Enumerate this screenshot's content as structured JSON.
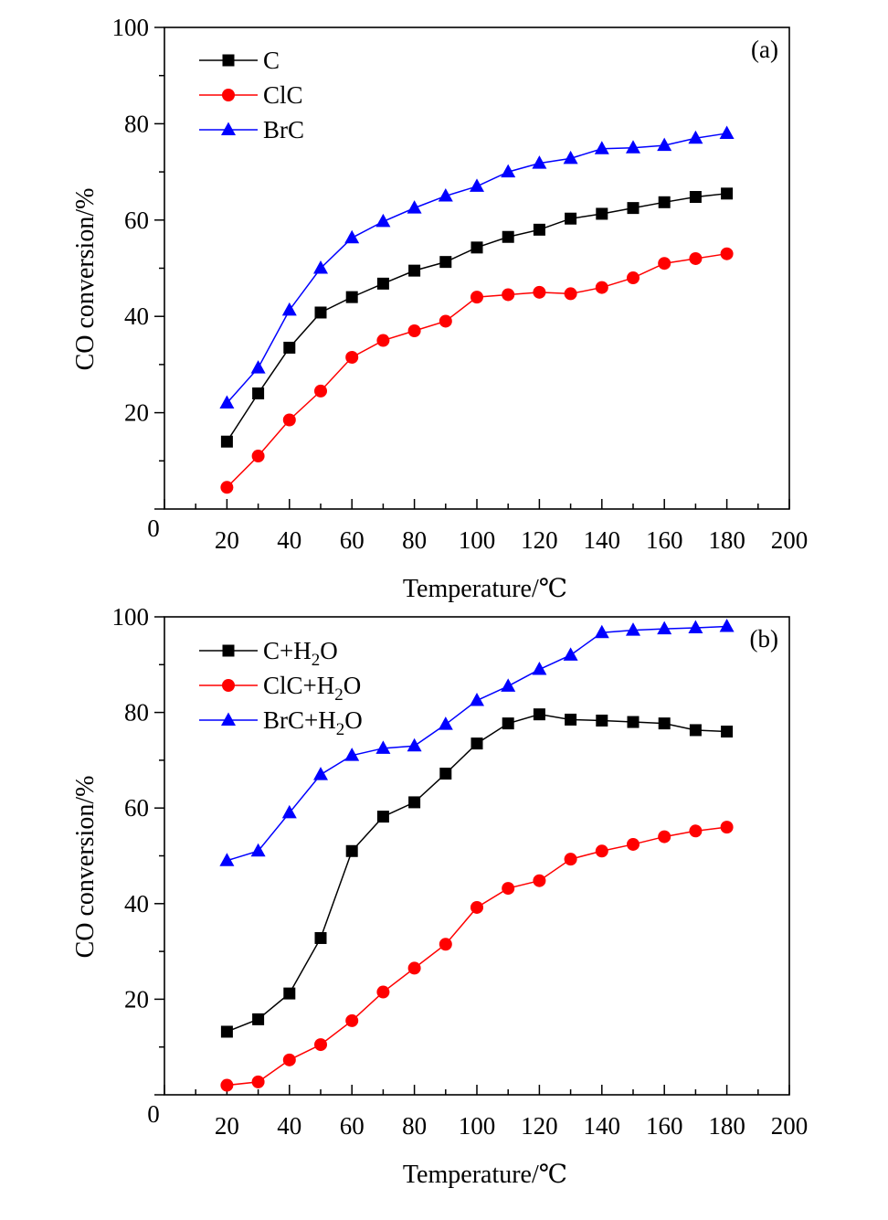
{
  "chart_data": [
    {
      "type": "line",
      "panel_label": "(a)",
      "xlabel": "Temperature/℃",
      "ylabel": "CO conversion/%",
      "xlim": [
        0,
        200
      ],
      "ylim": [
        0,
        100
      ],
      "x_ticks": [
        "20",
        "40",
        "60",
        "80",
        "100",
        "120",
        "140",
        "160",
        "180",
        "200"
      ],
      "y_ticks": [
        "20",
        "40",
        "60",
        "80",
        "100"
      ],
      "origin_label": "0",
      "legend_position": "top-left",
      "x": [
        20,
        30,
        40,
        50,
        60,
        70,
        80,
        90,
        100,
        110,
        120,
        130,
        140,
        150,
        160,
        170,
        180
      ],
      "series": [
        {
          "name": "C",
          "sub": "",
          "name_suffix": "",
          "color": "#000000",
          "marker": "square",
          "values": [
            14.0,
            24.0,
            33.5,
            40.8,
            44.0,
            46.8,
            49.5,
            51.3,
            54.3,
            56.5,
            58.0,
            60.3,
            61.3,
            62.5,
            63.7,
            64.8,
            65.5
          ]
        },
        {
          "name": "ClC",
          "sub": "",
          "name_suffix": "",
          "color": "#ff0000",
          "marker": "circle",
          "values": [
            4.5,
            11.0,
            18.5,
            24.5,
            31.5,
            35.0,
            37.0,
            39.0,
            44.0,
            44.5,
            45.0,
            44.7,
            46.0,
            48.0,
            51.0,
            52.0,
            53.0
          ]
        },
        {
          "name": "BrC",
          "sub": "",
          "name_suffix": "",
          "color": "#0000ff",
          "marker": "triangle",
          "values": [
            22.0,
            29.3,
            41.3,
            50.0,
            56.3,
            59.7,
            62.5,
            65.0,
            67.0,
            70.0,
            71.8,
            72.8,
            74.8,
            75.0,
            75.5,
            77.0,
            78.0
          ]
        }
      ]
    },
    {
      "type": "line",
      "panel_label": "(b)",
      "xlabel": "Temperature/℃",
      "ylabel": "CO conversion/%",
      "xlim": [
        0,
        200
      ],
      "ylim": [
        0,
        100
      ],
      "x_ticks": [
        "20",
        "40",
        "60",
        "80",
        "100",
        "120",
        "140",
        "160",
        "180",
        "200"
      ],
      "y_ticks": [
        "20",
        "40",
        "60",
        "80",
        "100"
      ],
      "origin_label": "0",
      "legend_position": "top-left",
      "x": [
        20,
        30,
        40,
        50,
        60,
        70,
        80,
        90,
        100,
        110,
        120,
        130,
        140,
        150,
        160,
        170,
        180
      ],
      "series": [
        {
          "name": "C+H",
          "sub": "2",
          "name_suffix": "O",
          "color": "#000000",
          "marker": "square",
          "values": [
            13.2,
            15.8,
            21.2,
            32.8,
            51.0,
            58.2,
            61.2,
            67.2,
            73.5,
            77.7,
            79.6,
            78.5,
            78.3,
            78.0,
            77.7,
            76.3,
            76.0
          ]
        },
        {
          "name": "ClC+H",
          "sub": "2",
          "name_suffix": "O",
          "color": "#ff0000",
          "marker": "circle",
          "values": [
            2.0,
            2.7,
            7.3,
            10.5,
            15.5,
            21.5,
            26.5,
            31.5,
            39.2,
            43.2,
            44.8,
            49.3,
            51.0,
            52.4,
            54.0,
            55.2,
            56.0
          ]
        },
        {
          "name": "BrC+H",
          "sub": "2",
          "name_suffix": "O",
          "color": "#0000ff",
          "marker": "triangle",
          "values": [
            49.0,
            51.0,
            59.0,
            67.0,
            71.0,
            72.5,
            73.0,
            77.5,
            82.5,
            85.5,
            89.0,
            92.0,
            96.7,
            97.2,
            97.5,
            97.7,
            98.0
          ]
        }
      ]
    }
  ]
}
